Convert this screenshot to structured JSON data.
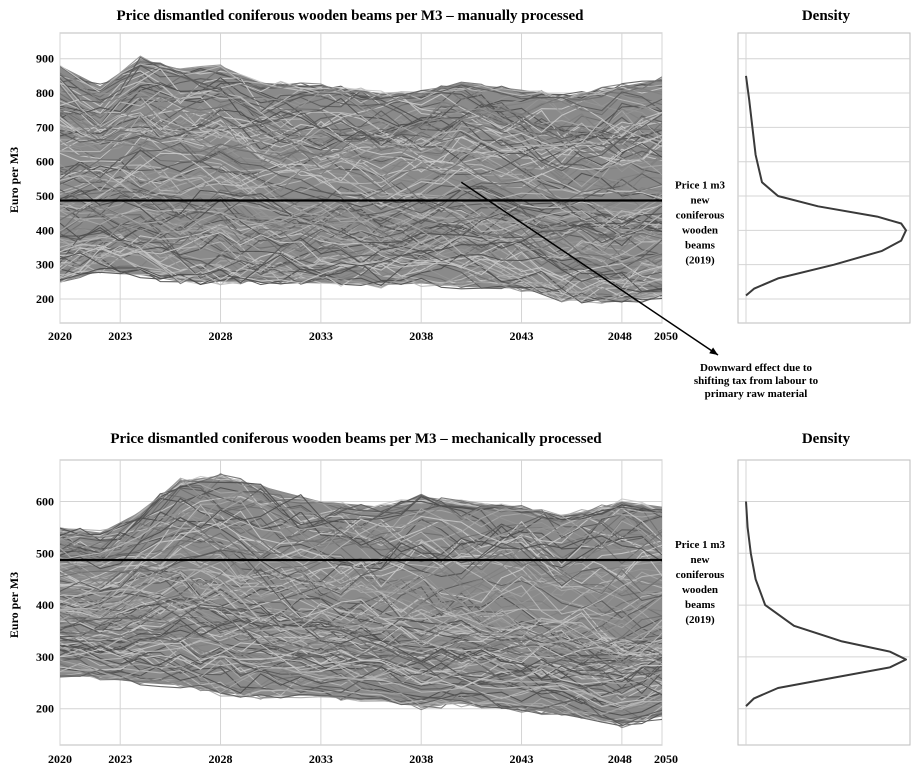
{
  "chart_data": [
    {
      "type": "line",
      "title": "Price dismantled coniferous wooden beams per M3 – manually processed",
      "ylabel": "Euro per M3",
      "xlabel": "",
      "x_ticks": [
        "2020",
        "2023",
        "2028",
        "2033",
        "2038",
        "2043",
        "2048",
        "2050"
      ],
      "x_tick_values": [
        2020,
        2023,
        2028,
        2033,
        2038,
        2043,
        2048,
        2050
      ],
      "xlim": [
        2020,
        2050
      ],
      "y_ticks": [
        "200",
        "300",
        "400",
        "500",
        "600",
        "700",
        "800",
        "900"
      ],
      "y_tick_values": [
        200,
        300,
        400,
        500,
        600,
        700,
        800,
        900
      ],
      "ylim": [
        130,
        975
      ],
      "grid": true,
      "reference_line": {
        "value": 487,
        "label_lines": [
          "Price 1 m3",
          "new",
          "coniferous",
          "wooden",
          "beams",
          "(2019)"
        ]
      },
      "annotation": {
        "lines": [
          "Downward effect due to",
          "shifting tax from labour to",
          "primary raw material"
        ],
        "arrow_from": {
          "x": 2040,
          "y": 540
        }
      },
      "band": {
        "x": [
          2020,
          2022,
          2024,
          2026,
          2028,
          2030,
          2033,
          2036,
          2038,
          2040,
          2043,
          2045,
          2048,
          2050
        ],
        "lower": [
          250,
          280,
          270,
          250,
          250,
          250,
          245,
          240,
          245,
          235,
          230,
          200,
          190,
          210
        ],
        "upper": [
          880,
          820,
          900,
          870,
          880,
          830,
          820,
          800,
          800,
          830,
          810,
          790,
          820,
          840
        ],
        "center": [
          560,
          560,
          570,
          560,
          560,
          540,
          530,
          520,
          515,
          520,
          505,
          490,
          480,
          500
        ]
      },
      "density": {
        "title": "Density",
        "y": [
          210,
          230,
          260,
          300,
          340,
          370,
          400,
          420,
          440,
          470,
          500,
          540,
          580,
          620,
          700,
          780,
          850
        ],
        "values": [
          0.0,
          0.05,
          0.2,
          0.55,
          0.85,
          0.97,
          1.0,
          0.97,
          0.82,
          0.45,
          0.2,
          0.1,
          0.08,
          0.06,
          0.04,
          0.02,
          0.0
        ]
      }
    },
    {
      "type": "line",
      "title": "Price dismantled coniferous wooden beams per M3 – mechanically processed",
      "ylabel": "Euro per M3",
      "xlabel": "",
      "x_ticks": [
        "2020",
        "2023",
        "2028",
        "2033",
        "2038",
        "2043",
        "2048",
        "2050"
      ],
      "x_tick_values": [
        2020,
        2023,
        2028,
        2033,
        2038,
        2043,
        2048,
        2050
      ],
      "xlim": [
        2020,
        2050
      ],
      "y_ticks": [
        "200",
        "300",
        "400",
        "500",
        "600"
      ],
      "y_tick_values": [
        200,
        300,
        400,
        500,
        600
      ],
      "ylim": [
        130,
        680
      ],
      "grid": true,
      "reference_line": {
        "value": 487,
        "label_lines": [
          "Price 1 m3",
          "new",
          "coniferous",
          "wooden",
          "beams",
          "(2019)"
        ]
      },
      "band": {
        "x": [
          2020,
          2022,
          2024,
          2026,
          2028,
          2030,
          2033,
          2036,
          2038,
          2040,
          2043,
          2045,
          2048,
          2050
        ],
        "lower": [
          265,
          260,
          250,
          245,
          230,
          225,
          225,
          215,
          205,
          210,
          200,
          190,
          170,
          185
        ],
        "upper": [
          550,
          540,
          580,
          640,
          650,
          630,
          600,
          590,
          610,
          600,
          590,
          570,
          600,
          590
        ],
        "center": [
          400,
          390,
          410,
          420,
          410,
          390,
          380,
          365,
          355,
          360,
          350,
          340,
          330,
          340
        ]
      },
      "density": {
        "title": "Density",
        "y": [
          205,
          220,
          240,
          260,
          280,
          295,
          310,
          330,
          360,
          400,
          450,
          500,
          550,
          600
        ],
        "values": [
          0.0,
          0.05,
          0.2,
          0.55,
          0.9,
          1.0,
          0.9,
          0.6,
          0.3,
          0.12,
          0.06,
          0.03,
          0.01,
          0.0
        ]
      }
    }
  ]
}
